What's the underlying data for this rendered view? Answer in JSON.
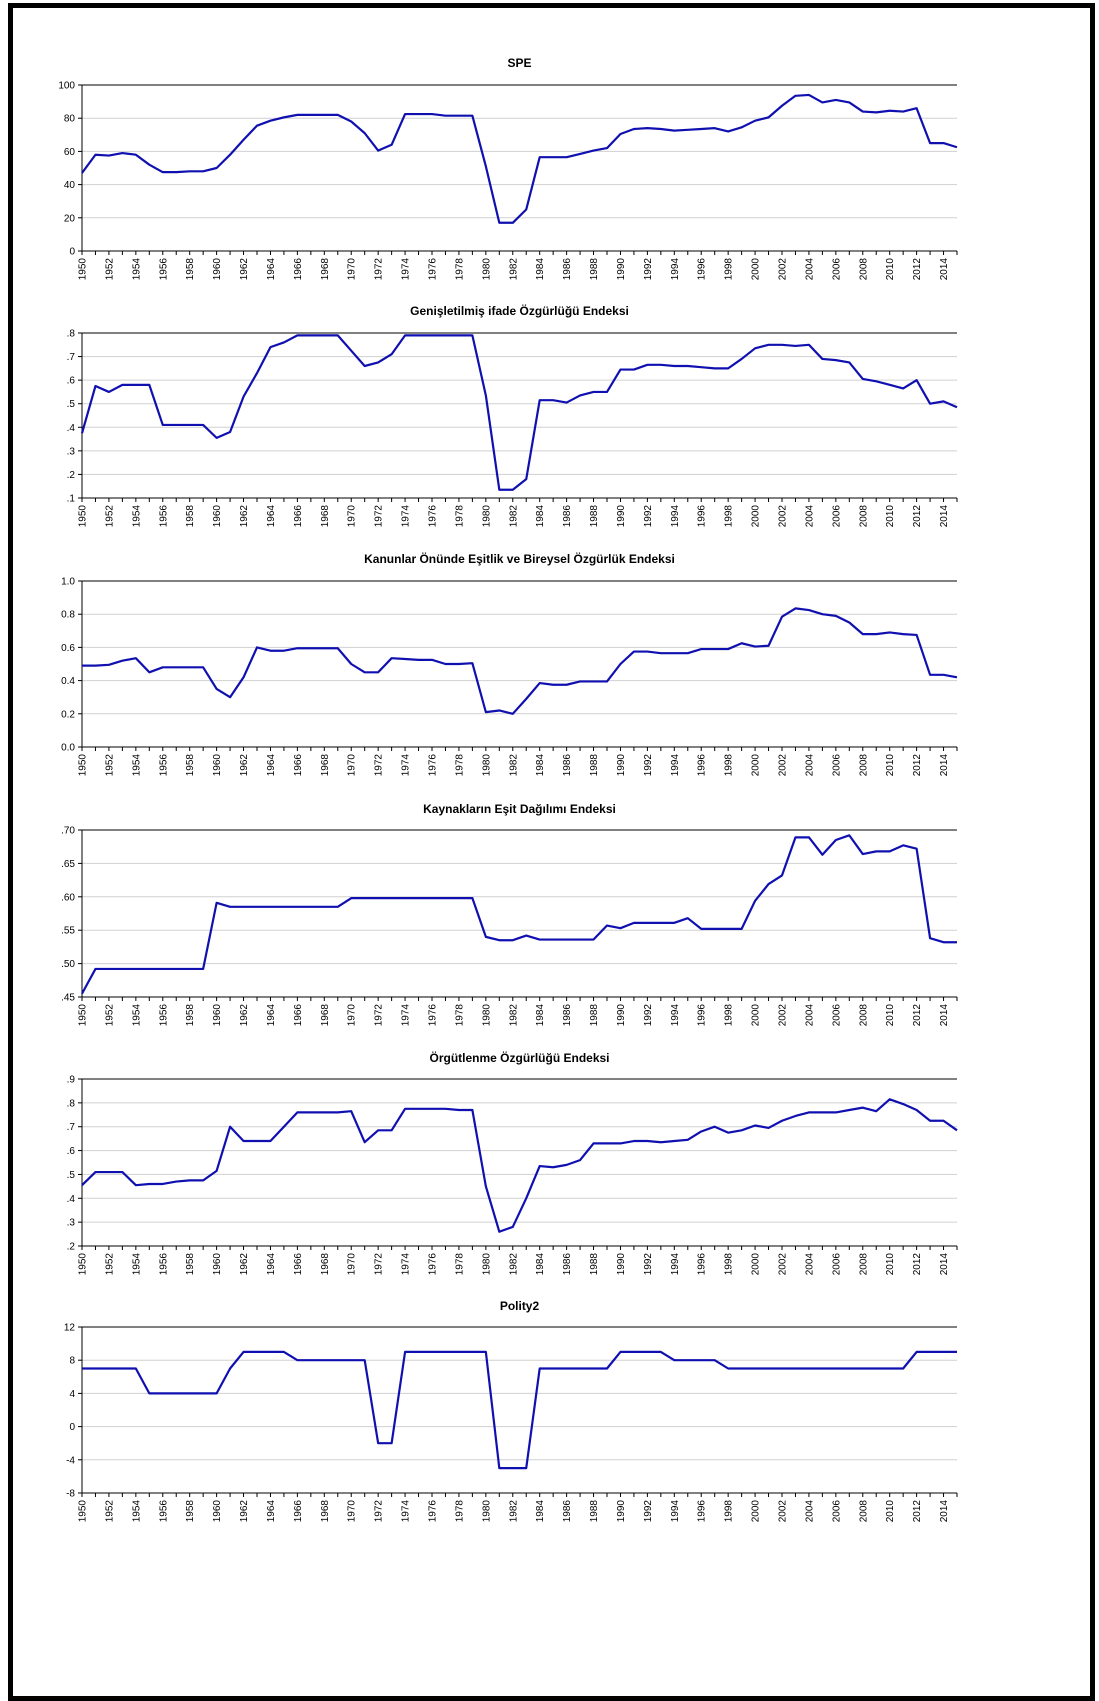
{
  "chart_data": [
    {
      "type": "line",
      "title": "SPE",
      "x": [
        1950,
        1951,
        1952,
        1953,
        1954,
        1955,
        1956,
        1957,
        1958,
        1959,
        1960,
        1961,
        1962,
        1963,
        1964,
        1965,
        1966,
        1967,
        1968,
        1969,
        1970,
        1971,
        1972,
        1973,
        1974,
        1975,
        1976,
        1977,
        1978,
        1979,
        1980,
        1981,
        1982,
        1983,
        1984,
        1985,
        1986,
        1987,
        1988,
        1989,
        1990,
        1991,
        1992,
        1993,
        1994,
        1995,
        1996,
        1997,
        1998,
        1999,
        2000,
        2001,
        2002,
        2003,
        2004,
        2005,
        2006,
        2007,
        2008,
        2009,
        2010,
        2011,
        2012,
        2013,
        2014,
        2015
      ],
      "values": [
        47,
        58,
        57.5,
        59,
        58,
        52,
        47.5,
        47.5,
        48,
        48,
        50,
        58,
        67,
        75.5,
        78.5,
        80.5,
        82,
        82,
        82,
        82,
        78,
        71,
        60.5,
        64,
        82.5,
        82.5,
        82.5,
        81.5,
        81.5,
        81.5,
        51,
        17,
        17,
        25,
        56.5,
        56.5,
        56.5,
        58.5,
        60.5,
        62,
        70.5,
        73.5,
        74,
        73.5,
        72.5,
        73,
        73.5,
        74,
        72,
        74.5,
        78.5,
        80.5,
        87.5,
        93.5,
        94,
        89.5,
        91,
        89.5,
        84,
        83.5,
        84.5,
        84,
        86,
        65,
        65,
        62.5
      ],
      "ylim": [
        0,
        100
      ],
      "yticks": [
        0,
        20,
        40,
        60,
        80,
        100
      ],
      "ytick_labels": [
        "0",
        "20",
        "40",
        "60",
        "80",
        "100"
      ],
      "xtick_labels": [
        "1950",
        "1952",
        "1954",
        "1956",
        "1958",
        "1960",
        "1962",
        "1964",
        "1966",
        "1968",
        "1970",
        "1972",
        "1974",
        "1976",
        "1978",
        "1980",
        "1982",
        "1984",
        "1986",
        "1988",
        "1990",
        "1992",
        "1994",
        "1996",
        "1998",
        "2000",
        "2002",
        "2004",
        "2006",
        "2008",
        "2010",
        "2012",
        "2014"
      ],
      "line_color": "#1010b0",
      "grid": true
    },
    {
      "type": "line",
      "title": "Genişletilmiş ifade Özgürlüğü Endeksi",
      "x": [
        1950,
        1951,
        1952,
        1953,
        1954,
        1955,
        1956,
        1957,
        1958,
        1959,
        1960,
        1961,
        1962,
        1963,
        1964,
        1965,
        1966,
        1967,
        1968,
        1969,
        1970,
        1971,
        1972,
        1973,
        1974,
        1975,
        1976,
        1977,
        1978,
        1979,
        1980,
        1981,
        1982,
        1983,
        1984,
        1985,
        1986,
        1987,
        1988,
        1989,
        1990,
        1991,
        1992,
        1993,
        1994,
        1995,
        1996,
        1997,
        1998,
        1999,
        2000,
        2001,
        2002,
        2003,
        2004,
        2005,
        2006,
        2007,
        2008,
        2009,
        2010,
        2011,
        2012,
        2013,
        2014,
        2015
      ],
      "values": [
        0.375,
        0.575,
        0.55,
        0.58,
        0.58,
        0.58,
        0.41,
        0.41,
        0.41,
        0.41,
        0.355,
        0.38,
        0.53,
        0.63,
        0.74,
        0.76,
        0.79,
        0.79,
        0.79,
        0.79,
        0.725,
        0.66,
        0.675,
        0.71,
        0.79,
        0.79,
        0.79,
        0.79,
        0.79,
        0.79,
        0.535,
        0.135,
        0.135,
        0.18,
        0.515,
        0.515,
        0.505,
        0.535,
        0.55,
        0.55,
        0.645,
        0.645,
        0.665,
        0.665,
        0.66,
        0.66,
        0.655,
        0.65,
        0.65,
        0.69,
        0.735,
        0.75,
        0.75,
        0.745,
        0.75,
        0.69,
        0.685,
        0.675,
        0.605,
        0.595,
        0.58,
        0.565,
        0.6,
        0.5,
        0.51,
        0.485
      ],
      "ylim": [
        0.1,
        0.8
      ],
      "yticks": [
        0.1,
        0.2,
        0.3,
        0.4,
        0.5,
        0.6,
        0.7,
        0.8
      ],
      "ytick_labels": [
        ".1",
        ".2",
        ".3",
        ".4",
        ".5",
        ".6",
        ".7",
        ".8"
      ],
      "xtick_labels": [
        "1950",
        "1952",
        "1954",
        "1956",
        "1958",
        "1960",
        "1962",
        "1964",
        "1966",
        "1968",
        "1970",
        "1972",
        "1974",
        "1976",
        "1978",
        "1980",
        "1982",
        "1984",
        "1986",
        "1988",
        "1990",
        "1992",
        "1994",
        "1996",
        "1998",
        "2000",
        "2002",
        "2004",
        "2006",
        "2008",
        "2010",
        "2012",
        "2014"
      ],
      "line_color": "#1010b0",
      "grid": true
    },
    {
      "type": "line",
      "title": "Kanunlar Önünde Eşitlik ve Bireysel Özgürlük Endeksi",
      "x": [
        1950,
        1951,
        1952,
        1953,
        1954,
        1955,
        1956,
        1957,
        1958,
        1959,
        1960,
        1961,
        1962,
        1963,
        1964,
        1965,
        1966,
        1967,
        1968,
        1969,
        1970,
        1971,
        1972,
        1973,
        1974,
        1975,
        1976,
        1977,
        1978,
        1979,
        1980,
        1981,
        1982,
        1983,
        1984,
        1985,
        1986,
        1987,
        1988,
        1989,
        1990,
        1991,
        1992,
        1993,
        1994,
        1995,
        1996,
        1997,
        1998,
        1999,
        2000,
        2001,
        2002,
        2003,
        2004,
        2005,
        2006,
        2007,
        2008,
        2009,
        2010,
        2011,
        2012,
        2013,
        2014,
        2015
      ],
      "values": [
        0.49,
        0.49,
        0.495,
        0.52,
        0.535,
        0.45,
        0.48,
        0.48,
        0.48,
        0.48,
        0.35,
        0.3,
        0.42,
        0.6,
        0.58,
        0.58,
        0.595,
        0.595,
        0.595,
        0.595,
        0.5,
        0.45,
        0.45,
        0.535,
        0.53,
        0.525,
        0.525,
        0.5,
        0.5,
        0.505,
        0.21,
        0.22,
        0.2,
        0.29,
        0.385,
        0.375,
        0.375,
        0.395,
        0.395,
        0.395,
        0.5,
        0.575,
        0.575,
        0.565,
        0.565,
        0.565,
        0.59,
        0.59,
        0.59,
        0.625,
        0.605,
        0.61,
        0.785,
        0.835,
        0.825,
        0.8,
        0.79,
        0.75,
        0.68,
        0.68,
        0.69,
        0.68,
        0.675,
        0.435,
        0.435,
        0.42
      ],
      "ylim": [
        0,
        1
      ],
      "yticks": [
        0,
        0.2,
        0.4,
        0.6,
        0.8,
        1.0
      ],
      "ytick_labels": [
        "0.0",
        "0.2",
        "0.4",
        "0.6",
        "0.8",
        "1.0"
      ],
      "xtick_labels": [
        "1950",
        "1952",
        "1954",
        "1956",
        "1958",
        "1960",
        "1962",
        "1964",
        "1966",
        "1968",
        "1970",
        "1972",
        "1974",
        "1976",
        "1978",
        "1980",
        "1982",
        "1984",
        "1986",
        "1988",
        "1990",
        "1992",
        "1994",
        "1996",
        "1998",
        "2000",
        "2002",
        "2004",
        "2006",
        "2008",
        "2010",
        "2012",
        "2014"
      ],
      "line_color": "#1010b0",
      "grid": true
    },
    {
      "type": "line",
      "title": "Kaynakların Eşit Dağılımı Endeksi",
      "x": [
        1950,
        1951,
        1952,
        1953,
        1954,
        1955,
        1956,
        1957,
        1958,
        1959,
        1960,
        1961,
        1962,
        1963,
        1964,
        1965,
        1966,
        1967,
        1968,
        1969,
        1970,
        1971,
        1972,
        1973,
        1974,
        1975,
        1976,
        1977,
        1978,
        1979,
        1980,
        1981,
        1982,
        1983,
        1984,
        1985,
        1986,
        1987,
        1988,
        1989,
        1990,
        1991,
        1992,
        1993,
        1994,
        1995,
        1996,
        1997,
        1998,
        1999,
        2000,
        2001,
        2002,
        2003,
        2004,
        2005,
        2006,
        2007,
        2008,
        2009,
        2010,
        2011,
        2012,
        2013,
        2014,
        2015
      ],
      "values": [
        0.455,
        0.492,
        0.492,
        0.492,
        0.492,
        0.492,
        0.492,
        0.492,
        0.492,
        0.492,
        0.591,
        0.585,
        0.585,
        0.585,
        0.585,
        0.585,
        0.585,
        0.585,
        0.585,
        0.585,
        0.598,
        0.598,
        0.598,
        0.598,
        0.598,
        0.598,
        0.598,
        0.598,
        0.598,
        0.598,
        0.54,
        0.535,
        0.535,
        0.542,
        0.536,
        0.536,
        0.536,
        0.536,
        0.536,
        0.557,
        0.553,
        0.561,
        0.561,
        0.561,
        0.561,
        0.568,
        0.552,
        0.552,
        0.552,
        0.552,
        0.594,
        0.619,
        0.632,
        0.689,
        0.689,
        0.663,
        0.685,
        0.692,
        0.664,
        0.668,
        0.668,
        0.677,
        0.672,
        0.538,
        0.532,
        0.532
      ],
      "ylim": [
        0.45,
        0.7
      ],
      "yticks": [
        0.45,
        0.5,
        0.55,
        0.6,
        0.65,
        0.7
      ],
      "ytick_labels": [
        ".45",
        ".50",
        ".55",
        ".60",
        ".65",
        ".70"
      ],
      "xtick_labels": [
        "1950",
        "1952",
        "1954",
        "1956",
        "1958",
        "1960",
        "1962",
        "1964",
        "1966",
        "1968",
        "1970",
        "1972",
        "1974",
        "1976",
        "1978",
        "1980",
        "1982",
        "1984",
        "1986",
        "1988",
        "1990",
        "1992",
        "1994",
        "1996",
        "1998",
        "2000",
        "2002",
        "2004",
        "2006",
        "2008",
        "2010",
        "2012",
        "2014"
      ],
      "line_color": "#1010b0",
      "grid": true
    },
    {
      "type": "line",
      "title": "Örgütlenme Özgürlüğü Endeksi",
      "x": [
        1950,
        1951,
        1952,
        1953,
        1954,
        1955,
        1956,
        1957,
        1958,
        1959,
        1960,
        1961,
        1962,
        1963,
        1964,
        1965,
        1966,
        1967,
        1968,
        1969,
        1970,
        1971,
        1972,
        1973,
        1974,
        1975,
        1976,
        1977,
        1978,
        1979,
        1980,
        1981,
        1982,
        1983,
        1984,
        1985,
        1986,
        1987,
        1988,
        1989,
        1990,
        1991,
        1992,
        1993,
        1994,
        1995,
        1996,
        1997,
        1998,
        1999,
        2000,
        2001,
        2002,
        2003,
        2004,
        2005,
        2006,
        2007,
        2008,
        2009,
        2010,
        2011,
        2012,
        2013,
        2014,
        2015
      ],
      "values": [
        0.455,
        0.51,
        0.51,
        0.51,
        0.455,
        0.46,
        0.46,
        0.47,
        0.475,
        0.475,
        0.515,
        0.7,
        0.64,
        0.64,
        0.64,
        0.7,
        0.76,
        0.76,
        0.76,
        0.76,
        0.765,
        0.635,
        0.685,
        0.685,
        0.775,
        0.775,
        0.775,
        0.775,
        0.77,
        0.77,
        0.45,
        0.26,
        0.28,
        0.4,
        0.535,
        0.53,
        0.54,
        0.56,
        0.63,
        0.63,
        0.63,
        0.64,
        0.64,
        0.635,
        0.64,
        0.645,
        0.68,
        0.7,
        0.675,
        0.685,
        0.705,
        0.695,
        0.725,
        0.745,
        0.76,
        0.76,
        0.76,
        0.77,
        0.78,
        0.765,
        0.815,
        0.795,
        0.77,
        0.725,
        0.725,
        0.685
      ],
      "ylim": [
        0.2,
        0.9
      ],
      "yticks": [
        0.2,
        0.3,
        0.4,
        0.5,
        0.6,
        0.7,
        0.8,
        0.9
      ],
      "ytick_labels": [
        ".2",
        ".3",
        ".4",
        ".5",
        ".6",
        ".7",
        ".8",
        ".9"
      ],
      "xtick_labels": [
        "1950",
        "1952",
        "1954",
        "1956",
        "1958",
        "1960",
        "1962",
        "1964",
        "1966",
        "1968",
        "1970",
        "1972",
        "1974",
        "1976",
        "1978",
        "1980",
        "1982",
        "1984",
        "1986",
        "1988",
        "1990",
        "1992",
        "1994",
        "1996",
        "1998",
        "2000",
        "2002",
        "2004",
        "2006",
        "2008",
        "2010",
        "2012",
        "2014"
      ],
      "line_color": "#1010b0",
      "grid": true
    },
    {
      "type": "line",
      "title": "Polity2",
      "x": [
        1950,
        1951,
        1952,
        1953,
        1954,
        1955,
        1956,
        1957,
        1958,
        1959,
        1960,
        1961,
        1962,
        1963,
        1964,
        1965,
        1966,
        1967,
        1968,
        1969,
        1970,
        1971,
        1972,
        1973,
        1974,
        1975,
        1976,
        1977,
        1978,
        1979,
        1980,
        1981,
        1982,
        1983,
        1984,
        1985,
        1986,
        1987,
        1988,
        1989,
        1990,
        1991,
        1992,
        1993,
        1994,
        1995,
        1996,
        1997,
        1998,
        1999,
        2000,
        2001,
        2002,
        2003,
        2004,
        2005,
        2006,
        2007,
        2008,
        2009,
        2010,
        2011,
        2012,
        2013,
        2014,
        2015
      ],
      "values": [
        7,
        7,
        7,
        7,
        7,
        4,
        4,
        4,
        4,
        4,
        4,
        7,
        9,
        9,
        9,
        9,
        8,
        8,
        8,
        8,
        8,
        8,
        -2,
        -2,
        9,
        9,
        9,
        9,
        9,
        9,
        9,
        -5,
        -5,
        -5,
        7,
        7,
        7,
        7,
        7,
        7,
        9,
        9,
        9,
        9,
        8,
        8,
        8,
        8,
        7,
        7,
        7,
        7,
        7,
        7,
        7,
        7,
        7,
        7,
        7,
        7,
        7,
        7,
        9,
        9,
        9,
        9
      ],
      "ylim": [
        -8,
        12
      ],
      "yticks": [
        -8,
        -4,
        0,
        4,
        8,
        12
      ],
      "ytick_labels": [
        "-8",
        "-4",
        "0",
        "4",
        "8",
        "12"
      ],
      "xtick_labels": [
        "1950",
        "1952",
        "1954",
        "1956",
        "1958",
        "1960",
        "1962",
        "1964",
        "1966",
        "1968",
        "1970",
        "1972",
        "1974",
        "1976",
        "1978",
        "1980",
        "1982",
        "1984",
        "1986",
        "1988",
        "1990",
        "1992",
        "1994",
        "1996",
        "1998",
        "2000",
        "2002",
        "2004",
        "2006",
        "2008",
        "2010",
        "2012",
        "2014"
      ],
      "line_color": "#1010b0",
      "grid": true
    }
  ]
}
